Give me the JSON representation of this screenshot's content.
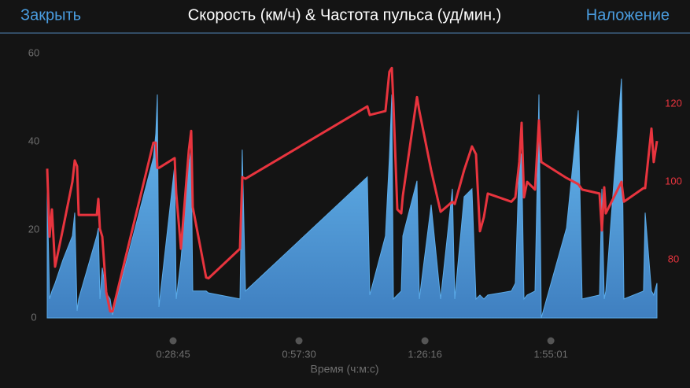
{
  "header": {
    "left_button": "Закрыть",
    "title": "Скорость (км/ч) & Частота пульса (уд/мин.)",
    "right_button": "Наложение"
  },
  "chart_data": {
    "type": "area-line",
    "xlabel": "Время (ч:м:с)",
    "x": [
      0,
      32,
      65,
      108,
      216,
      345,
      377,
      410,
      431,
      679,
      701,
      722,
      755,
      809,
      862,
      895,
      1455,
      1488,
      1509,
      1531,
      1746,
      1768,
      1833,
      1940,
      1973,
      1994,
      2178,
      2210,
      2641,
      2673,
      2717,
      4387,
      4420,
      4635,
      4689,
      4722,
      4743,
      4797,
      4851,
      4873,
      5067,
      5099,
      5261,
      5390,
      5552,
      5584,
      5713,
      5821,
      5875,
      5929,
      5983,
      6037,
      6360,
      6414,
      6468,
      6501,
      6533,
      6576,
      6684,
      6738,
      6770,
      7115,
      7277,
      7330,
      7568,
      7600,
      7633,
      7654,
      7869,
      7902,
      8171,
      8193,
      8279,
      8311,
      8355
    ],
    "series": [
      {
        "color": "#5aaae8",
        "values": [
          29.3,
          4.3,
          6.1,
          7.9,
          13.2,
          18.6,
          23.9,
          1.6,
          4.3,
          18.6,
          20.4,
          4.3,
          11.4,
          5.7,
          4.3,
          0.7,
          36.4,
          41.8,
          50.7,
          2.5,
          34.6,
          4.3,
          13.2,
          34.6,
          38.2,
          6.1,
          6.1,
          5.7,
          4.3,
          38.2,
          6.1,
          32,
          5.2,
          18.6,
          36.4,
          50.7,
          4.3,
          5.2,
          6.1,
          18.6,
          31.1,
          4.3,
          25.7,
          4.3,
          29.3,
          4.3,
          27.5,
          29.3,
          4.3,
          5.2,
          4.3,
          5.2,
          6.1,
          7.9,
          36.4,
          37.3,
          4.3,
          5.2,
          6.1,
          50.7,
          0,
          20.4,
          47.1,
          4.3,
          5.2,
          29.3,
          4.3,
          6.1,
          54.3,
          4.3,
          6.1,
          23.9,
          6.1,
          5.2,
          7.9
        ]
      },
      {
        "color": "#e8343e",
        "axis": "y2",
        "values": [
          103.4,
          85.9,
          92.9,
          78.2,
          87.9,
          100,
          105.5,
          104,
          91.5,
          91.5,
          95.6,
          87.9,
          85.9,
          71.7,
          66.7,
          66.7,
          110.1,
          110.1,
          103.6,
          103.6,
          106.1,
          97,
          82.8,
          108.1,
          113.1,
          93.5,
          75.4,
          75.2,
          82.8,
          101.2,
          100.8,
          119.4,
          117.2,
          118.2,
          128.3,
          129.3,
          120.2,
          92.9,
          91.9,
          96.4,
          121.8,
          118.2,
          103,
          92.3,
          94.9,
          94.3,
          103,
          109.1,
          107.1,
          87.3,
          90.9,
          97,
          94.9,
          96,
          105.1,
          115.2,
          96,
          100,
          98,
          115.8,
          105.1,
          101,
          99.4,
          98,
          97,
          87.5,
          98.6,
          91.9,
          100,
          94.9,
          98.4,
          98.4,
          113.7,
          105.1,
          110.5
        ]
      }
    ],
    "xlim": [
      0,
      8355
    ],
    "xticks": [
      {
        "value": 1725,
        "label": "0:28:45"
      },
      {
        "value": 3450,
        "label": "0:57:30"
      },
      {
        "value": 5176,
        "label": "1:26:16"
      },
      {
        "value": 6901,
        "label": "1:55:01"
      }
    ],
    "ylim": [
      0,
      60
    ],
    "yticks": [
      0,
      20,
      40,
      60
    ],
    "y2lim": [
      65,
      133
    ],
    "y2ticks": [
      80,
      100,
      120
    ],
    "grid": false
  }
}
